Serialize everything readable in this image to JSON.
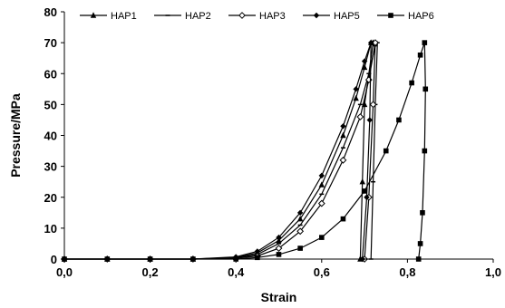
{
  "chart_data": {
    "type": "line",
    "title": "",
    "xlabel": "Strain",
    "ylabel": "Pressure/MPa",
    "xlim": [
      0,
      1
    ],
    "ylim": [
      0,
      80
    ],
    "xticks": [
      0,
      0.2,
      0.4,
      0.6,
      0.8,
      1.0
    ],
    "xtick_labels": [
      "0,0",
      "0,2",
      "0,4",
      "0,6",
      "0,8",
      "1,0"
    ],
    "yticks": [
      0,
      10,
      20,
      30,
      40,
      50,
      60,
      70,
      80
    ],
    "ytick_labels": [
      "0",
      "10",
      "20",
      "30",
      "40",
      "50",
      "60",
      "70",
      "80"
    ],
    "grid": false,
    "legend_position": "top",
    "series": [
      {
        "name": "HAP1",
        "marker": "triangle",
        "color": "#000000",
        "x": [
          0.0,
          0.1,
          0.2,
          0.3,
          0.4,
          0.45,
          0.5,
          0.55,
          0.6,
          0.65,
          0.68,
          0.7,
          0.715,
          0.72,
          0.7,
          0.695,
          0.69
        ],
        "y": [
          0,
          0,
          0,
          0,
          0.5,
          2,
          6,
          13,
          24,
          40,
          52,
          62,
          70,
          70,
          50,
          25,
          0
        ]
      },
      {
        "name": "HAP2",
        "marker": "dash",
        "color": "#000000",
        "x": [
          0.0,
          0.1,
          0.2,
          0.3,
          0.4,
          0.45,
          0.5,
          0.55,
          0.6,
          0.65,
          0.69,
          0.71,
          0.725,
          0.73,
          0.725,
          0.72,
          0.715
        ],
        "y": [
          0,
          0,
          0,
          0,
          0.4,
          1.5,
          5,
          11,
          21,
          36,
          50,
          60,
          69,
          70,
          50,
          25,
          0
        ]
      },
      {
        "name": "HAP3",
        "marker": "diamond-open",
        "color": "#000000",
        "x": [
          0.0,
          0.1,
          0.2,
          0.3,
          0.4,
          0.45,
          0.5,
          0.55,
          0.6,
          0.65,
          0.69,
          0.71,
          0.725,
          0.72,
          0.71,
          0.7
        ],
        "y": [
          0,
          0,
          0,
          0,
          0.3,
          1,
          3.5,
          9,
          18,
          32,
          46,
          58,
          70,
          50,
          20,
          0
        ]
      },
      {
        "name": "HAP5",
        "marker": "diamond",
        "color": "#000000",
        "x": [
          0.0,
          0.1,
          0.2,
          0.3,
          0.4,
          0.45,
          0.5,
          0.55,
          0.6,
          0.65,
          0.68,
          0.7,
          0.715,
          0.712,
          0.705,
          0.695
        ],
        "y": [
          0,
          0,
          0,
          0,
          0.7,
          2.5,
          7,
          15,
          27,
          43,
          55,
          64,
          70,
          45,
          20,
          0
        ]
      },
      {
        "name": "HAP6",
        "marker": "square",
        "color": "#000000",
        "x": [
          0.0,
          0.1,
          0.2,
          0.3,
          0.4,
          0.45,
          0.5,
          0.55,
          0.6,
          0.65,
          0.7,
          0.75,
          0.78,
          0.81,
          0.83,
          0.84,
          0.842,
          0.84,
          0.835,
          0.83,
          0.826
        ],
        "y": [
          0,
          0,
          0,
          0,
          0,
          0.5,
          1.5,
          3.5,
          7,
          13,
          22,
          35,
          45,
          57,
          66,
          70,
          55,
          35,
          15,
          5,
          0
        ]
      }
    ]
  }
}
